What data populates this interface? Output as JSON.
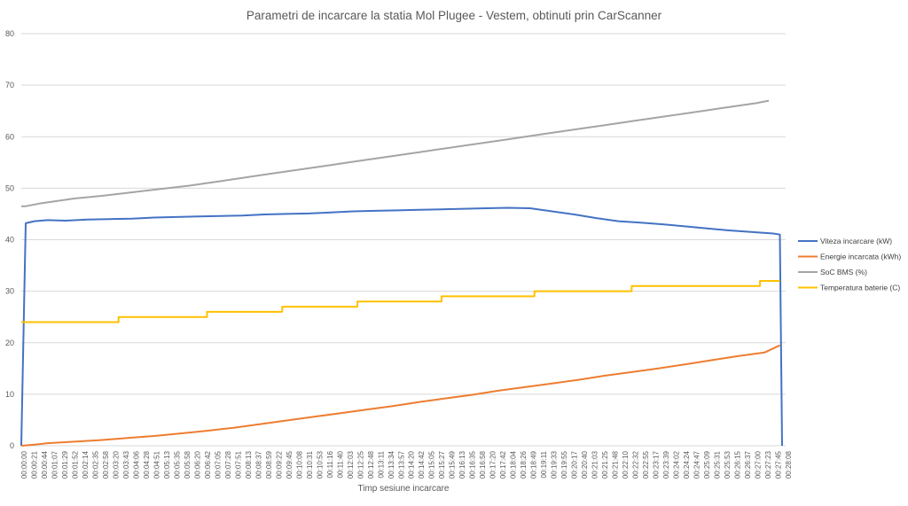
{
  "chart_data": {
    "type": "line",
    "title": "Parametri de incarcare la statia Mol Plugee - Vestem, obtinuti prin CarScanner",
    "xlabel": "Timp sesiune incarcare",
    "ylabel": "",
    "ylim": [
      0,
      80
    ],
    "yticks": [
      "0",
      "10",
      "20",
      "30",
      "40",
      "50",
      "60",
      "70",
      "80"
    ],
    "grid": true,
    "legend_position": "right",
    "x_tick_labels": [
      "00:00:00",
      "00:00:21",
      "00:00:44",
      "00:01:07",
      "00:01:29",
      "00:01:52",
      "00:02:14",
      "00:02:35",
      "00:02:58",
      "00:03:20",
      "00:03:43",
      "00:04:06",
      "00:04:28",
      "00:04:51",
      "00:05:13",
      "00:05:35",
      "00:05:58",
      "00:06:20",
      "00:06:42",
      "00:07:05",
      "00:07:28",
      "00:07:51",
      "00:08:13",
      "00:08:37",
      "00:08:59",
      "00:09:22",
      "00:09:45",
      "00:10:08",
      "00:10:31",
      "00:10:53",
      "00:11:16",
      "00:11:40",
      "00:12:03",
      "00:12:25",
      "00:12:48",
      "00:13:11",
      "00:13:34",
      "00:13:57",
      "00:14:20",
      "00:14:42",
      "00:15:05",
      "00:15:27",
      "00:15:49",
      "00:16:13",
      "00:16:35",
      "00:16:58",
      "00:17:20",
      "00:17:42",
      "00:18:04",
      "00:18:26",
      "00:18:49",
      "00:19:11",
      "00:19:33",
      "00:19:55",
      "00:20:17",
      "00:20:40",
      "00:21:03",
      "00:21:25",
      "00:21:48",
      "00:22:10",
      "00:22:32",
      "00:22:55",
      "00:23:17",
      "00:23:39",
      "00:24:02",
      "00:24:24",
      "00:24:47",
      "00:25:09",
      "00:25:31",
      "00:25:53",
      "00:26:15",
      "00:26:37",
      "00:27:00",
      "00:27:23",
      "00:27:45",
      "00:28:08"
    ],
    "x_range_seconds": [
      0,
      1728
    ],
    "series": [
      {
        "name": "Viteza incarcare (kW)",
        "color": "#4472c4",
        "points": [
          [
            0,
            0
          ],
          [
            10,
            43.2
          ],
          [
            30,
            43.6
          ],
          [
            60,
            43.8
          ],
          [
            100,
            43.7
          ],
          [
            150,
            43.9
          ],
          [
            200,
            44.0
          ],
          [
            250,
            44.1
          ],
          [
            300,
            44.3
          ],
          [
            350,
            44.4
          ],
          [
            400,
            44.5
          ],
          [
            450,
            44.6
          ],
          [
            500,
            44.7
          ],
          [
            550,
            44.9
          ],
          [
            600,
            45.0
          ],
          [
            650,
            45.1
          ],
          [
            700,
            45.3
          ],
          [
            750,
            45.5
          ],
          [
            800,
            45.6
          ],
          [
            850,
            45.7
          ],
          [
            900,
            45.8
          ],
          [
            950,
            45.9
          ],
          [
            1000,
            46.0
          ],
          [
            1050,
            46.1
          ],
          [
            1100,
            46.2
          ],
          [
            1150,
            46.1
          ],
          [
            1200,
            45.5
          ],
          [
            1250,
            44.9
          ],
          [
            1300,
            44.2
          ],
          [
            1350,
            43.6
          ],
          [
            1400,
            43.3
          ],
          [
            1450,
            43.0
          ],
          [
            1500,
            42.6
          ],
          [
            1550,
            42.2
          ],
          [
            1600,
            41.8
          ],
          [
            1650,
            41.5
          ],
          [
            1700,
            41.2
          ],
          [
            1715,
            41.0
          ],
          [
            1720,
            0
          ]
        ]
      },
      {
        "name": "Energie incarcata (kWh)",
        "color": "#ed7d31",
        "points": [
          [
            0,
            0
          ],
          [
            30,
            0.2
          ],
          [
            60,
            0.5
          ],
          [
            120,
            0.8
          ],
          [
            180,
            1.1
          ],
          [
            240,
            1.5
          ],
          [
            300,
            1.9
          ],
          [
            360,
            2.4
          ],
          [
            420,
            2.9
          ],
          [
            480,
            3.5
          ],
          [
            540,
            4.2
          ],
          [
            600,
            4.9
          ],
          [
            660,
            5.6
          ],
          [
            720,
            6.3
          ],
          [
            780,
            7.0
          ],
          [
            840,
            7.7
          ],
          [
            900,
            8.5
          ],
          [
            960,
            9.2
          ],
          [
            1020,
            9.9
          ],
          [
            1080,
            10.7
          ],
          [
            1140,
            11.4
          ],
          [
            1200,
            12.1
          ],
          [
            1260,
            12.8
          ],
          [
            1320,
            13.6
          ],
          [
            1380,
            14.3
          ],
          [
            1440,
            15.0
          ],
          [
            1500,
            15.8
          ],
          [
            1560,
            16.6
          ],
          [
            1620,
            17.4
          ],
          [
            1680,
            18.1
          ],
          [
            1715,
            19.5
          ]
        ]
      },
      {
        "name": "SoC BMS (%)",
        "color": "#a5a5a5",
        "points": [
          [
            0,
            46.5
          ],
          [
            10,
            46.5
          ],
          [
            40,
            47
          ],
          [
            80,
            47.5
          ],
          [
            120,
            48
          ],
          [
            180,
            48.5
          ],
          [
            230,
            49
          ],
          [
            280,
            49.5
          ],
          [
            330,
            50
          ],
          [
            380,
            50.5
          ],
          [
            420,
            51
          ],
          [
            460,
            51.5
          ],
          [
            500,
            52
          ],
          [
            540,
            52.5
          ],
          [
            580,
            53
          ],
          [
            620,
            53.5
          ],
          [
            660,
            54
          ],
          [
            700,
            54.5
          ],
          [
            740,
            55
          ],
          [
            780,
            55.5
          ],
          [
            820,
            56
          ],
          [
            860,
            56.5
          ],
          [
            900,
            57
          ],
          [
            940,
            57.5
          ],
          [
            980,
            58
          ],
          [
            1020,
            58.5
          ],
          [
            1060,
            59
          ],
          [
            1100,
            59.5
          ],
          [
            1140,
            60
          ],
          [
            1180,
            60.5
          ],
          [
            1220,
            61
          ],
          [
            1260,
            61.5
          ],
          [
            1300,
            62
          ],
          [
            1340,
            62.5
          ],
          [
            1380,
            63
          ],
          [
            1420,
            63.5
          ],
          [
            1460,
            64
          ],
          [
            1500,
            64.5
          ],
          [
            1540,
            65
          ],
          [
            1580,
            65.5
          ],
          [
            1620,
            66
          ],
          [
            1660,
            66.5
          ],
          [
            1690,
            67
          ]
        ]
      },
      {
        "name": "Temperatura baterie (C)",
        "color": "#ffc000",
        "points": [
          [
            0,
            24
          ],
          [
            220,
            24
          ],
          [
            220,
            25
          ],
          [
            420,
            25
          ],
          [
            420,
            26
          ],
          [
            590,
            26
          ],
          [
            590,
            27
          ],
          [
            760,
            27
          ],
          [
            760,
            28
          ],
          [
            950,
            28
          ],
          [
            950,
            29
          ],
          [
            1160,
            29
          ],
          [
            1160,
            30
          ],
          [
            1380,
            30
          ],
          [
            1380,
            31
          ],
          [
            1670,
            31
          ],
          [
            1670,
            32
          ],
          [
            1715,
            32
          ]
        ]
      }
    ]
  }
}
